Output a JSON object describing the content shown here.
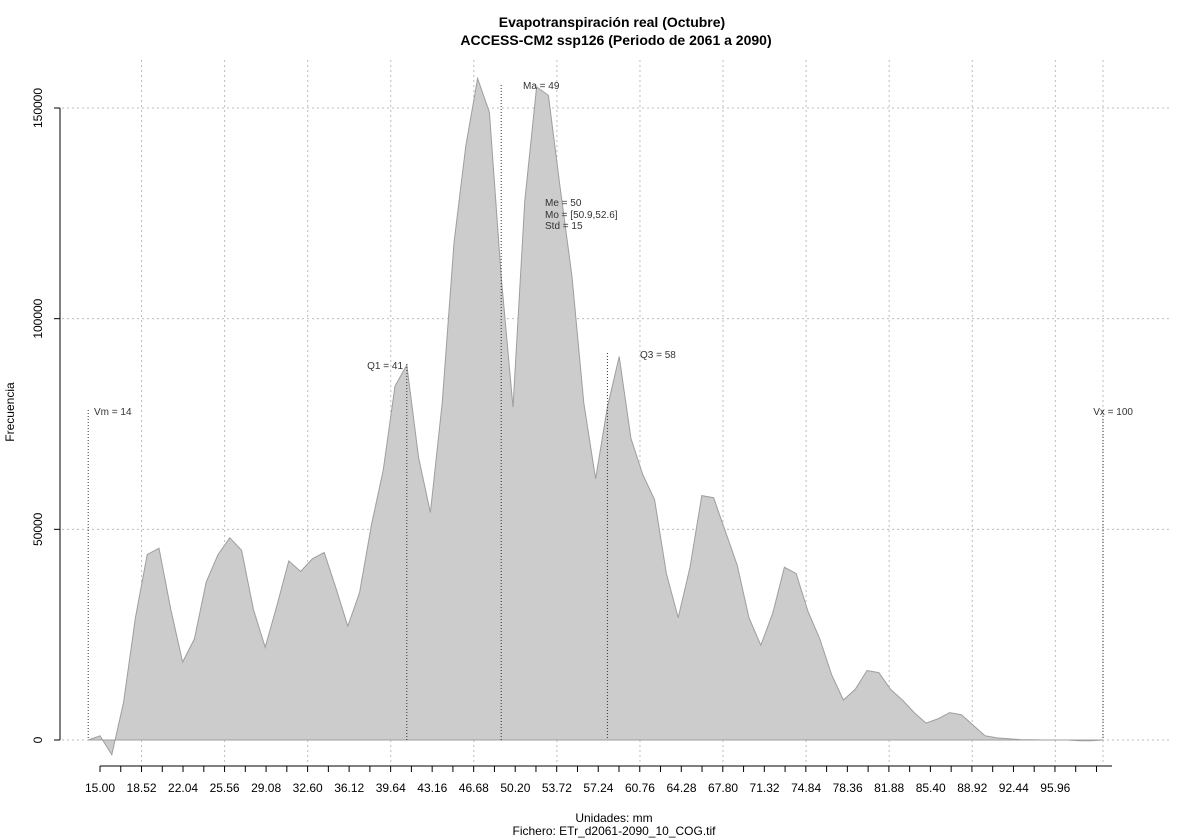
{
  "chart_data": {
    "type": "area",
    "title": "Evapotranspiración real (Octubre)",
    "subtitle": "ACCESS-CM2 ssp126 (Periodo de 2061 a 2090)",
    "xlabel": "Unidades: mm",
    "caption": "Fichero: ETr_d2061-2090_10_COG.tif",
    "ylabel": "Frecuencia",
    "xlim": [
      13.5,
      103.5
    ],
    "ylim": [
      -6000,
      160000
    ],
    "grid": true,
    "fill_color": "#cccccc",
    "line_color": "#9e9e9e",
    "x_ticks": [
      "15.00",
      "18.52",
      "22.04",
      "25.56",
      "29.08",
      "32.60",
      "36.12",
      "39.64",
      "43.16",
      "46.68",
      "50.20",
      "53.72",
      "57.24",
      "60.76",
      "64.28",
      "67.80",
      "71.32",
      "74.84",
      "78.36",
      "81.88",
      "85.40",
      "88.92",
      "92.44",
      "95.96"
    ],
    "y_ticks": [
      "0",
      "50000",
      "100000",
      "150000"
    ],
    "x": [
      14,
      15,
      16,
      17,
      18,
      19,
      20,
      21,
      22,
      23,
      24,
      25,
      26,
      27,
      28,
      29,
      30,
      31,
      32,
      33,
      34,
      35,
      36,
      37,
      38,
      39,
      40,
      41,
      42,
      43,
      44,
      45,
      46,
      47,
      48,
      49,
      50,
      51,
      52,
      53,
      54,
      55,
      56,
      57,
      58,
      59,
      60,
      61,
      62,
      63,
      64,
      65,
      66,
      67,
      68,
      69,
      70,
      71,
      72,
      73,
      74,
      75,
      76,
      77,
      78,
      79,
      80,
      81,
      82,
      83,
      84,
      85,
      86,
      87,
      88,
      89,
      90,
      91,
      92,
      93,
      94,
      95,
      96,
      97,
      98,
      99,
      100
    ],
    "y": [
      0,
      1000,
      -3500,
      9000,
      29000,
      44000,
      45500,
      31000,
      18500,
      24000,
      37500,
      44000,
      48000,
      45000,
      31000,
      22000,
      32000,
      42500,
      40000,
      43000,
      44500,
      36000,
      27000,
      35000,
      51000,
      64000,
      84000,
      89000,
      67000,
      54000,
      80000,
      118000,
      141000,
      157000,
      149000,
      110000,
      79000,
      128000,
      155000,
      153000,
      131000,
      110000,
      80000,
      62000,
      79000,
      91000,
      71500,
      63000,
      57000,
      39500,
      29000,
      41000,
      58000,
      57500,
      49500,
      41500,
      29000,
      22500,
      30000,
      41000,
      39500,
      30500,
      24000,
      15500,
      9500,
      12000,
      16500,
      16000,
      12000,
      9500,
      6500,
      4000,
      5000,
      6500,
      6000,
      3500,
      1000,
      500,
      300,
      100,
      50,
      0,
      0,
      0,
      -200,
      -200,
      0
    ],
    "annotations": {
      "vm": {
        "label": "Vm = 14",
        "value": 14
      },
      "q1": {
        "label": "Q1 = 41",
        "value": 41
      },
      "ma": {
        "label": "Ma = 49",
        "value": 49
      },
      "q3": {
        "label": "Q3 = 58",
        "value": 58
      },
      "vx": {
        "label": "Vx = 100",
        "value": 100
      },
      "me": "Me = 50",
      "mo": "Mo = [50.9,52.6]",
      "std": "Std = 15"
    }
  }
}
